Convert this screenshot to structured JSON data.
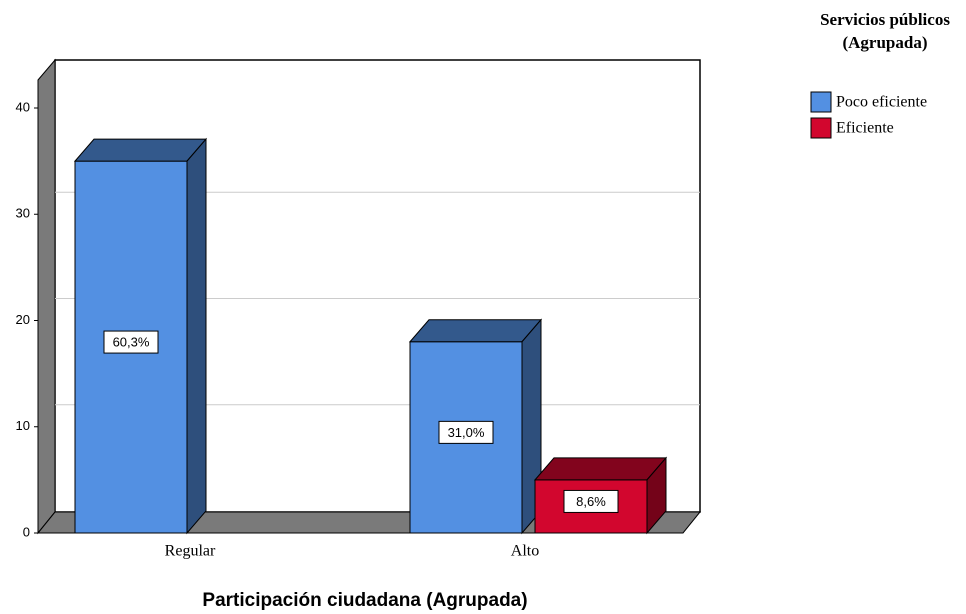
{
  "chart_data": {
    "type": "bar3d",
    "x_label": "Participación ciudadana (Agrupada)",
    "legend_title": "Servicios públicos (Agrupada)",
    "categories": [
      "Regular",
      "Alto"
    ],
    "series": [
      {
        "name": "Poco eficiente",
        "color": "#5390e2",
        "values": [
          35,
          18
        ],
        "value_labels": [
          "60,3%",
          "31,0%"
        ]
      },
      {
        "name": "Eficiente",
        "color": "#d2062e",
        "values": [
          null,
          5
        ],
        "value_labels": [
          null,
          "8,6%"
        ]
      }
    ],
    "ylim": [
      0,
      40
    ],
    "yticks": [
      0,
      10,
      20,
      30,
      40
    ],
    "grid": true,
    "legend": "right"
  }
}
